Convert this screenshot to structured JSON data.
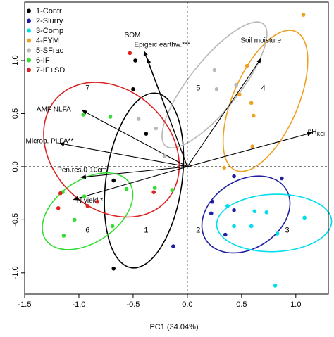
{
  "chart_data": {
    "type": "scatter",
    "title": "",
    "xlabel": "PC1  (34.04%)",
    "ylabel": "",
    "xlim": [
      -1.5,
      1.3
    ],
    "ylim": [
      -1.2,
      1.55
    ],
    "x_ticks": [
      -1.5,
      -1.0,
      -0.5,
      0.0,
      0.5,
      1.0
    ],
    "y_ticks": [
      -1.0,
      -0.5,
      0.0,
      0.5,
      1.0
    ],
    "x_tick_labels": [
      "-1.5",
      "-1.0",
      "-0.5",
      "0.0",
      "0.5",
      "1.0"
    ],
    "y_tick_labels": [
      "-1.0",
      "-0.5",
      "0.0",
      "0.5",
      "1.0"
    ],
    "reference_lines": {
      "x": 0,
      "y": 0,
      "style": "dashed"
    },
    "legend": {
      "position": "top-left"
    },
    "series": [
      {
        "name": "1-Contr",
        "color": "#000000",
        "points": [
          [
            -0.5,
            0.73
          ],
          [
            -0.38,
            0.31
          ],
          [
            -0.68,
            -0.13
          ],
          [
            -0.68,
            -0.96
          ],
          [
            -0.48,
            1.0
          ]
        ]
      },
      {
        "name": "2-Slurry",
        "color": "#1f1fa3",
        "points": [
          [
            0.43,
            -0.09
          ],
          [
            0.87,
            -0.11
          ],
          [
            0.22,
            -0.44
          ],
          [
            0.35,
            -0.64
          ],
          [
            0.23,
            -0.33
          ],
          [
            -0.13,
            -0.75
          ],
          [
            0.43,
            -0.41
          ]
        ]
      },
      {
        "name": "3-Comp",
        "color": "#00ddee",
        "points": [
          [
            0.37,
            -0.37
          ],
          [
            0.62,
            -0.42
          ],
          [
            0.73,
            -0.43
          ],
          [
            1.08,
            -0.48
          ],
          [
            0.81,
            -1.12
          ],
          [
            0.59,
            -0.56
          ],
          [
            0.83,
            -0.63
          ],
          [
            0.43,
            -0.56
          ]
        ]
      },
      {
        "name": "4-FYM",
        "color": "#f0a020",
        "points": [
          [
            1.07,
            1.43
          ],
          [
            0.61,
            0.48
          ],
          [
            0.59,
            0.6
          ],
          [
            0.55,
            0.95
          ],
          [
            0.48,
            0.68
          ],
          [
            0.34,
            -0.01
          ],
          [
            0.6,
            0.19
          ]
        ]
      },
      {
        "name": "5-SFrac",
        "color": "#b8b8b8",
        "points": [
          [
            0.25,
            0.91
          ],
          [
            0.27,
            0.73
          ],
          [
            0.45,
            0.77
          ],
          [
            -0.21,
            0.1
          ],
          [
            -0.45,
            0.45
          ],
          [
            -0.29,
            0.36
          ]
        ]
      },
      {
        "name": "6-IF",
        "color": "#33dd33",
        "points": [
          [
            -0.71,
            0.47
          ],
          [
            -0.96,
            0.49
          ],
          [
            -1.15,
            -0.24
          ],
          [
            -0.95,
            -0.28
          ],
          [
            -1.04,
            -0.5
          ],
          [
            -1.14,
            -0.65
          ],
          [
            -0.56,
            -0.21
          ],
          [
            -0.3,
            -0.2
          ],
          [
            -0.14,
            -0.22
          ],
          [
            -0.69,
            -0.56
          ]
        ]
      },
      {
        "name": "7-IF+SD",
        "color": "#dd2222",
        "points": [
          [
            -0.53,
            1.07
          ],
          [
            -1.17,
            -0.25
          ],
          [
            -0.83,
            -0.33
          ],
          [
            -1.19,
            -0.39
          ],
          [
            -0.31,
            -0.24
          ],
          [
            -0.92,
            -0.37
          ]
        ]
      }
    ],
    "ellipses": [
      {
        "label": "1",
        "color": "#000000",
        "cx": -0.4,
        "cy": -0.13,
        "rx": 0.83,
        "ry": 0.35,
        "angle": 82
      },
      {
        "label": "2",
        "color": "#1f1fa3",
        "cx": 0.54,
        "cy": -0.45,
        "rx": 0.44,
        "ry": 0.32,
        "angle": 33
      },
      {
        "label": "3",
        "color": "#00ddee",
        "cx": 0.8,
        "cy": -0.53,
        "rx": 0.53,
        "ry": 0.27,
        "angle": 2
      },
      {
        "label": "4",
        "color": "#f0a020",
        "cx": 0.72,
        "cy": 0.62,
        "rx": 0.71,
        "ry": 0.3,
        "angle": 67
      },
      {
        "label": "5",
        "color": "#b8b8b8",
        "cx": 0.25,
        "cy": 0.77,
        "rx": 0.73,
        "ry": 0.23,
        "angle": 52
      },
      {
        "label": "6",
        "color": "#33dd33",
        "cx": -0.92,
        "cy": -0.42,
        "rx": 0.47,
        "ry": 0.29,
        "angle": 35
      },
      {
        "label": "7",
        "color": "#dd2222",
        "cx": -0.7,
        "cy": 0.16,
        "rx": 0.7,
        "ry": 0.55,
        "angle": 135
      }
    ],
    "ellipse_number_labels": [
      {
        "text": "1",
        "x": -0.38,
        "y": -0.62
      },
      {
        "text": "2",
        "x": 0.1,
        "y": -0.62
      },
      {
        "text": "3",
        "x": 0.92,
        "y": -0.62
      },
      {
        "text": "4",
        "x": 0.7,
        "y": 0.72
      },
      {
        "text": "5",
        "x": 0.1,
        "y": 0.72
      },
      {
        "text": "6",
        "x": -0.92,
        "y": -0.62
      },
      {
        "text": "7",
        "x": -0.92,
        "y": 0.72
      }
    ],
    "loading_vectors": [
      {
        "label": "Soil moisture",
        "x": 0.68,
        "y": 1.02
      },
      {
        "label": "SOM",
        "x": -0.4,
        "y": 1.09
      },
      {
        "label": "Epigeic earthw.***",
        "x": -0.37,
        "y": 1.02
      },
      {
        "label": "pH",
        "subscript": "KCl",
        "x": 1.15,
        "y": 0.32
      },
      {
        "label": "AMF NLFA",
        "x": -0.97,
        "y": 0.53
      },
      {
        "label": "Microb. PLFA**",
        "x": -1.18,
        "y": 0.22
      },
      {
        "label": "Pen.res.0-10cm",
        "x": -0.98,
        "y": -0.1
      },
      {
        "label": "N yield *",
        "x": -1.05,
        "y": -0.31
      }
    ],
    "vector_label_positions": {
      "Soil moisture": {
        "x": 0.49,
        "y": 1.17
      },
      "SOM": {
        "x": -0.58,
        "y": 1.22
      },
      "Epigeic earthw.***": {
        "x": -0.49,
        "y": 1.13
      },
      "pH": {
        "x": 1.11,
        "y": 0.31
      },
      "AMF NLFA": {
        "x": -1.39,
        "y": 0.52
      },
      "Microb. PLFA**": {
        "x": -1.49,
        "y": 0.22
      },
      "Pen.res.0-10cm": {
        "x": -1.2,
        "y": -0.05
      },
      "N yield *": {
        "x": -1.02,
        "y": -0.34
      }
    }
  }
}
